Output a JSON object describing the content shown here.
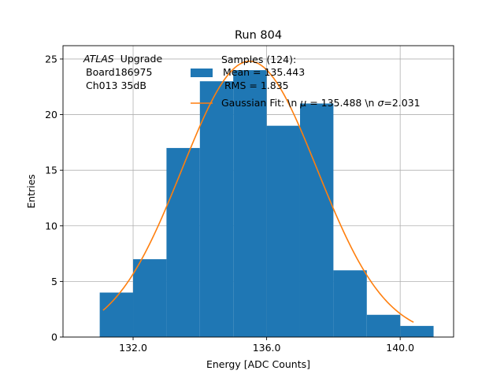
{
  "chart_data": {
    "type": "bar",
    "title": "Run 804",
    "xlabel": "Energy [ADC Counts]",
    "ylabel": "Entries",
    "xlim": [
      129.9,
      141.6
    ],
    "ylim": [
      0,
      26.2
    ],
    "grid": true,
    "bins": [
      {
        "x0": 131,
        "x1": 132,
        "value": 4
      },
      {
        "x0": 132,
        "x1": 133,
        "value": 7
      },
      {
        "x0": 133,
        "x1": 134,
        "value": 17
      },
      {
        "x0": 134,
        "x1": 135,
        "value": 23
      },
      {
        "x0": 135,
        "x1": 136,
        "value": 24
      },
      {
        "x0": 136,
        "x1": 137,
        "value": 19
      },
      {
        "x0": 137,
        "x1": 138,
        "value": 21
      },
      {
        "x0": 138,
        "x1": 139,
        "value": 6
      },
      {
        "x0": 139,
        "x1": 140,
        "value": 2
      },
      {
        "x0": 140,
        "x1": 141,
        "value": 1
      }
    ],
    "xticks": [
      132,
      136,
      140
    ],
    "xtick_labels": [
      "132.0",
      "136.0",
      "140.0"
    ],
    "yticks": [
      0,
      5,
      10,
      15,
      20,
      25
    ],
    "ytick_labels": [
      "0",
      "5",
      "10",
      "15",
      "20",
      "25"
    ],
    "fit": {
      "mu": 135.488,
      "sigma": 2.031,
      "amplitude": 24.8,
      "x_range": [
        131.1,
        140.4
      ]
    },
    "annotation": {
      "atlas": "ATLAS",
      "upgrade": "Upgrade",
      "board": "Board186975",
      "channel": "Ch013 35dB"
    },
    "legend": {
      "location": "upper center",
      "hist_title": "Samples (124):",
      "hist_mean": "Mean = 135.443",
      "hist_rms": "RMS = 1.835",
      "fit_label_prefix": "Gaussian Fit: \\n ",
      "fit_mu_symbol": "μ",
      "fit_mu_value": " = 135.488 \\n ",
      "fit_sigma_symbol": "σ",
      "fit_sigma_value": "=2.031"
    },
    "colors": {
      "bars": "#1f77b4",
      "fit": "#ff7f0e",
      "grid": "#b0b0b0",
      "axis": "#000000"
    }
  }
}
